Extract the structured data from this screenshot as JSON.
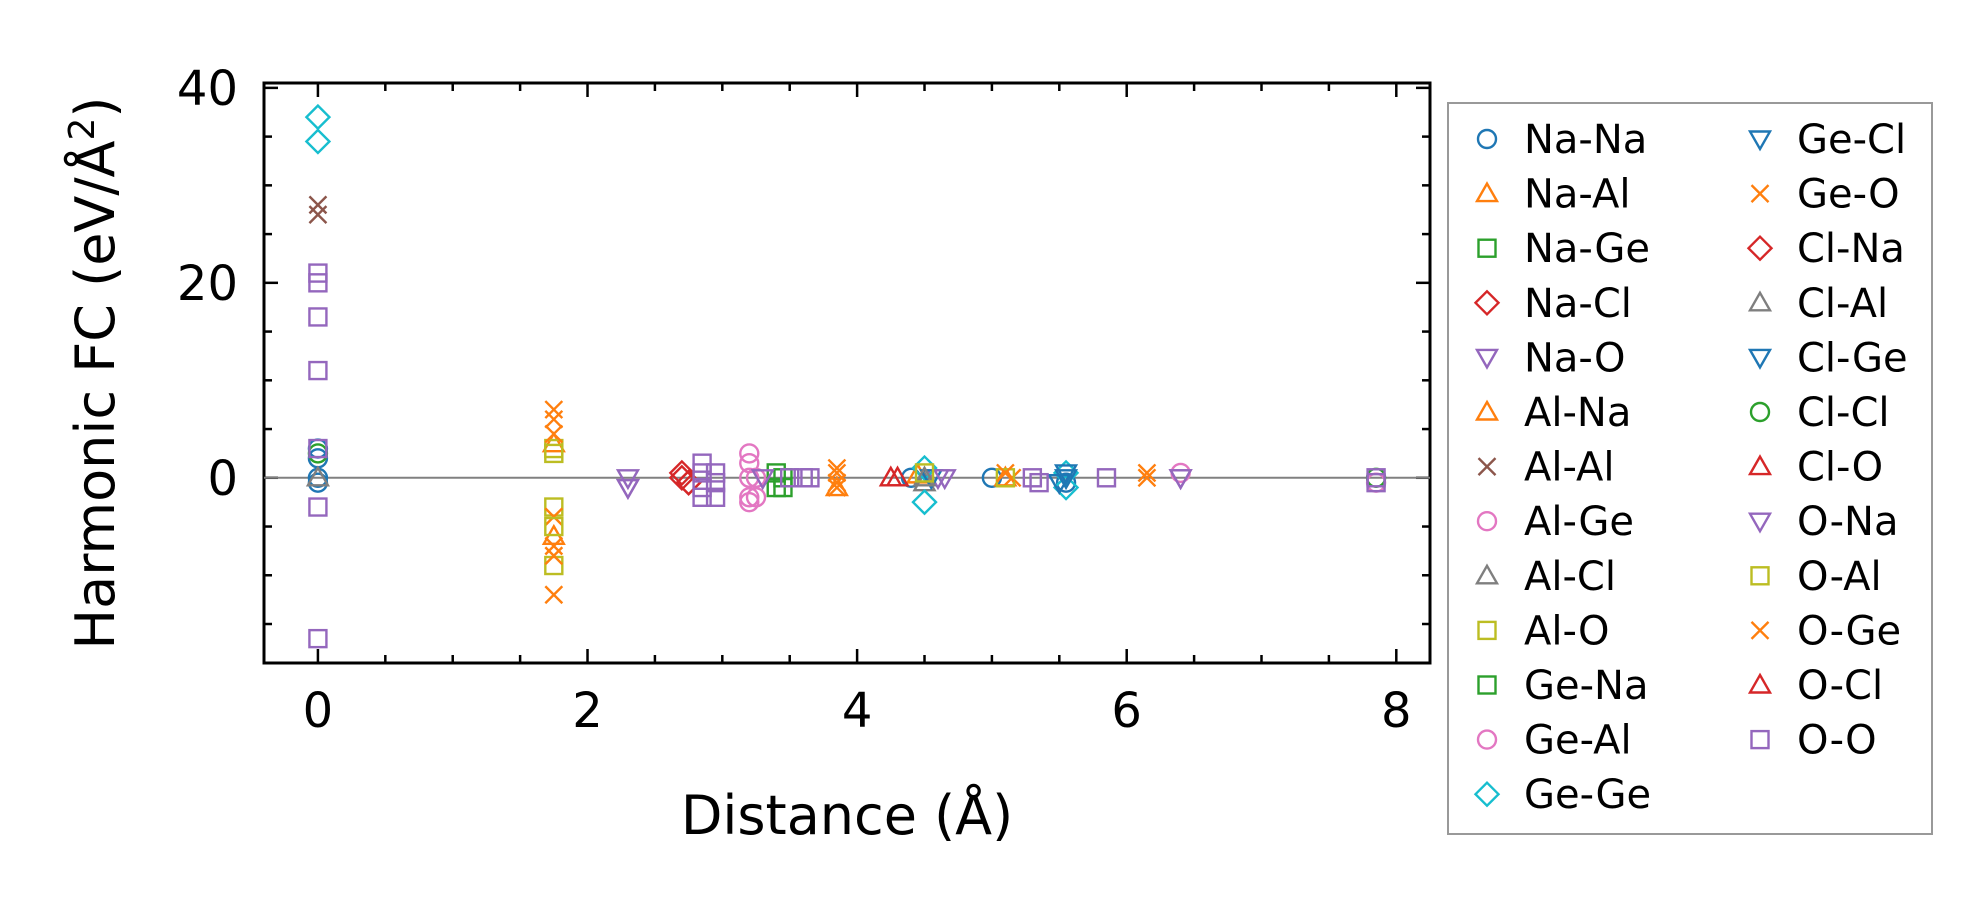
{
  "chart_data": {
    "type": "scatter",
    "xlabel": "Distance (Å)",
    "ylabel_main": "Harmonic FC (eV/Å",
    "ylabel_sup": "2",
    "ylabel_close": ")",
    "xlim": [
      -0.4,
      8.25
    ],
    "ylim": [
      -19,
      40.5
    ],
    "x_ticks": [
      0,
      2,
      4,
      6,
      8
    ],
    "x_tick_labels": [
      "0",
      "2",
      "4",
      "6",
      "8"
    ],
    "y_ticks": [
      0,
      20,
      40
    ],
    "y_tick_labels": [
      "0",
      "20",
      "40"
    ],
    "zero_line": true,
    "grid": false,
    "legend_position": "outside right",
    "series": [
      {
        "name": "Na-Na",
        "marker": "circle",
        "color": "#1f77b4",
        "points": [
          [
            0,
            0
          ],
          [
            0,
            3
          ],
          [
            0,
            2
          ],
          [
            0,
            -0.5
          ],
          [
            4.4,
            0
          ],
          [
            5.0,
            0
          ],
          [
            5.55,
            -0.5
          ]
        ]
      },
      {
        "name": "Na-Al",
        "marker": "triangle-up",
        "color": "#ff7f0e",
        "points": [
          [
            4.45,
            0.3
          ],
          [
            5.1,
            0
          ]
        ]
      },
      {
        "name": "Na-Ge",
        "marker": "square",
        "color": "#2ca02c",
        "points": [
          [
            3.4,
            0.5
          ],
          [
            3.4,
            -1
          ]
        ]
      },
      {
        "name": "Na-Cl",
        "marker": "diamond",
        "color": "#d62728",
        "points": [
          [
            2.7,
            0
          ],
          [
            2.75,
            -0.5
          ]
        ]
      },
      {
        "name": "Na-O",
        "marker": "triangle-down",
        "color": "#9467bd",
        "points": [
          [
            2.3,
            0
          ],
          [
            2.3,
            -1
          ],
          [
            4.6,
            0
          ],
          [
            6.4,
            0
          ]
        ]
      },
      {
        "name": "Al-Na",
        "marker": "triangle-up",
        "color": "#ff7f0e",
        "points": [
          [
            1.75,
            3.5
          ],
          [
            1.75,
            -6
          ],
          [
            3.85,
            -1
          ]
        ]
      },
      {
        "name": "Al-Al",
        "marker": "x",
        "color": "#8c564b",
        "points": [
          [
            0,
            28
          ],
          [
            0,
            27
          ]
        ]
      },
      {
        "name": "Al-Ge",
        "marker": "circle",
        "color": "#e377c2",
        "points": [
          [
            3.2,
            2.5
          ],
          [
            3.2,
            1.5
          ],
          [
            3.2,
            0
          ],
          [
            3.2,
            -2
          ],
          [
            3.2,
            -2.5
          ],
          [
            6.4,
            0.5
          ],
          [
            7.85,
            -0.5
          ]
        ]
      },
      {
        "name": "Al-Cl",
        "marker": "triangle-up",
        "color": "#7f7f7f",
        "points": [
          [
            0,
            0
          ],
          [
            4.5,
            -0.5
          ]
        ]
      },
      {
        "name": "Al-O",
        "marker": "square",
        "color": "#bcbd22",
        "points": [
          [
            1.75,
            3
          ],
          [
            1.75,
            -3
          ],
          [
            1.75,
            -9
          ]
        ]
      },
      {
        "name": "Ge-Na",
        "marker": "square",
        "color": "#2ca02c",
        "points": [
          [
            3.45,
            0
          ],
          [
            3.45,
            -1
          ]
        ]
      },
      {
        "name": "Ge-Al",
        "marker": "circle",
        "color": "#e377c2",
        "points": [
          [
            3.25,
            0
          ],
          [
            3.25,
            -2
          ]
        ]
      },
      {
        "name": "Ge-Ge",
        "marker": "diamond",
        "color": "#17becf",
        "points": [
          [
            0,
            37
          ],
          [
            0,
            34.5
          ],
          [
            4.5,
            1
          ],
          [
            4.5,
            -2.5
          ],
          [
            5.55,
            0.5
          ],
          [
            5.55,
            -1
          ]
        ]
      },
      {
        "name": "Ge-Cl",
        "marker": "triangle-down",
        "color": "#1f77b4",
        "points": [
          [
            4.55,
            0
          ],
          [
            5.55,
            0
          ]
        ]
      },
      {
        "name": "Ge-O",
        "marker": "x",
        "color": "#ff7f0e",
        "points": [
          [
            1.75,
            7
          ],
          [
            1.75,
            4.5
          ],
          [
            1.75,
            -4
          ],
          [
            1.75,
            -7
          ],
          [
            1.75,
            -12
          ],
          [
            3.85,
            0.5
          ],
          [
            3.85,
            -1
          ],
          [
            5.15,
            0
          ],
          [
            6.15,
            0
          ]
        ]
      },
      {
        "name": "Cl-Na",
        "marker": "diamond",
        "color": "#d62728",
        "points": [
          [
            2.7,
            0.5
          ],
          [
            2.75,
            -0.5
          ]
        ]
      },
      {
        "name": "Cl-Al",
        "marker": "triangle-up",
        "color": "#7f7f7f",
        "points": [
          [
            4.5,
            0
          ]
        ]
      },
      {
        "name": "Cl-Ge",
        "marker": "triangle-down",
        "color": "#1f77b4",
        "points": [
          [
            5.55,
            0.5
          ],
          [
            5.5,
            -0.5
          ]
        ]
      },
      {
        "name": "Cl-Cl",
        "marker": "circle",
        "color": "#2ca02c",
        "points": [
          [
            0,
            2.5
          ],
          [
            7.85,
            0
          ]
        ]
      },
      {
        "name": "Cl-O",
        "marker": "triangle-up",
        "color": "#d62728",
        "points": [
          [
            4.25,
            0
          ]
        ]
      },
      {
        "name": "O-Na",
        "marker": "triangle-down",
        "color": "#9467bd",
        "points": [
          [
            2.3,
            -1
          ],
          [
            3.3,
            0
          ],
          [
            4.65,
            0
          ],
          [
            6.4,
            0
          ]
        ]
      },
      {
        "name": "O-Al",
        "marker": "square",
        "color": "#bcbd22",
        "points": [
          [
            1.75,
            2.5
          ],
          [
            1.75,
            -5
          ],
          [
            4.5,
            0.5
          ],
          [
            5.1,
            0
          ]
        ]
      },
      {
        "name": "O-Ge",
        "marker": "x",
        "color": "#ff7f0e",
        "points": [
          [
            1.75,
            6
          ],
          [
            1.75,
            -8
          ],
          [
            3.85,
            1
          ],
          [
            3.85,
            -0.5
          ],
          [
            5.1,
            0.5
          ],
          [
            6.15,
            0.5
          ]
        ]
      },
      {
        "name": "O-Cl",
        "marker": "triangle-up",
        "color": "#d62728",
        "points": [
          [
            4.3,
            0
          ]
        ]
      },
      {
        "name": "O-O",
        "marker": "square",
        "color": "#9467bd",
        "points": [
          [
            0,
            21
          ],
          [
            0,
            20
          ],
          [
            0,
            16.5
          ],
          [
            0,
            11
          ],
          [
            0,
            3
          ],
          [
            0,
            -3
          ],
          [
            0,
            -16.5
          ],
          [
            2.85,
            1.5
          ],
          [
            2.85,
            0.5
          ],
          [
            2.85,
            -1
          ],
          [
            2.85,
            -2
          ],
          [
            2.95,
            0.5
          ],
          [
            2.95,
            -0.5
          ],
          [
            2.95,
            -2
          ],
          [
            3.5,
            0
          ],
          [
            3.6,
            0
          ],
          [
            3.65,
            0
          ],
          [
            5.3,
            0
          ],
          [
            5.35,
            -0.5
          ],
          [
            5.85,
            0
          ],
          [
            7.85,
            0
          ],
          [
            7.85,
            -0.5
          ]
        ]
      }
    ]
  }
}
